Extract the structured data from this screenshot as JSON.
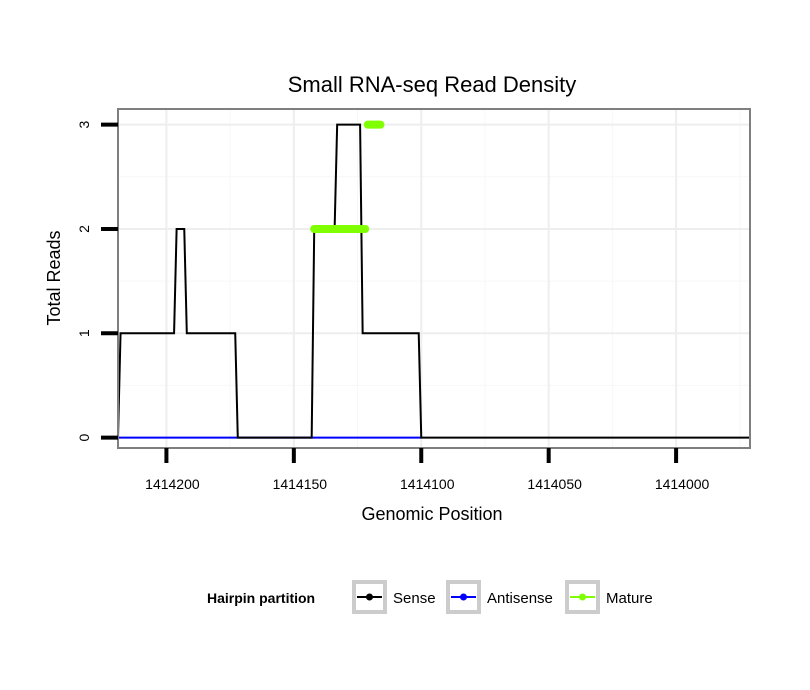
{
  "chart_data": {
    "type": "line",
    "title": "Small RNA-seq Read Density",
    "xlabel": "Genomic Position",
    "ylabel": "Total Reads",
    "x_reversed": true,
    "xlim": [
      1414219,
      1413971
    ],
    "ylim": [
      -0.1,
      3.15
    ],
    "x_ticks": [
      1414200,
      1414150,
      1414100,
      1414050,
      1414000
    ],
    "x_tick_labels": [
      "1414200",
      "1414150",
      "1414100",
      "1414050",
      "1414000"
    ],
    "y_ticks": [
      0,
      1,
      2,
      3
    ],
    "y_tick_labels": [
      "0",
      "1",
      "2",
      "3"
    ],
    "grid": true,
    "legend": {
      "title": "Hairpin partition",
      "position": "bottom",
      "entries": [
        {
          "label": "Sense",
          "color": "#000000"
        },
        {
          "label": "Antisense",
          "color": "#0000ff"
        },
        {
          "label": "Mature",
          "color": "#7fff00"
        }
      ]
    },
    "series": [
      {
        "name": "Sense",
        "color": "#000000",
        "x": [
          1414219,
          1414218,
          1414197,
          1414196,
          1414193,
          1414192,
          1414173,
          1414172,
          1414143,
          1414142,
          1414134,
          1414133,
          1414124,
          1414123,
          1414121,
          1414120,
          1414101,
          1414100,
          1413971
        ],
        "y": [
          0,
          1,
          1,
          2,
          2,
          1,
          1,
          0,
          0,
          2,
          2,
          3,
          3,
          1,
          1,
          1,
          1,
          0,
          0
        ]
      },
      {
        "name": "Antisense",
        "color": "#0000ff",
        "x": [
          1414219,
          1414100
        ],
        "y": [
          0,
          0
        ]
      },
      {
        "name": "Mature",
        "color": "#7fff00",
        "segments": [
          {
            "x": [
              1414142,
              1414122
            ],
            "y": [
              2,
              2
            ]
          },
          {
            "x": [
              1414121,
              1414116
            ],
            "y": [
              3,
              3
            ]
          }
        ]
      }
    ]
  }
}
